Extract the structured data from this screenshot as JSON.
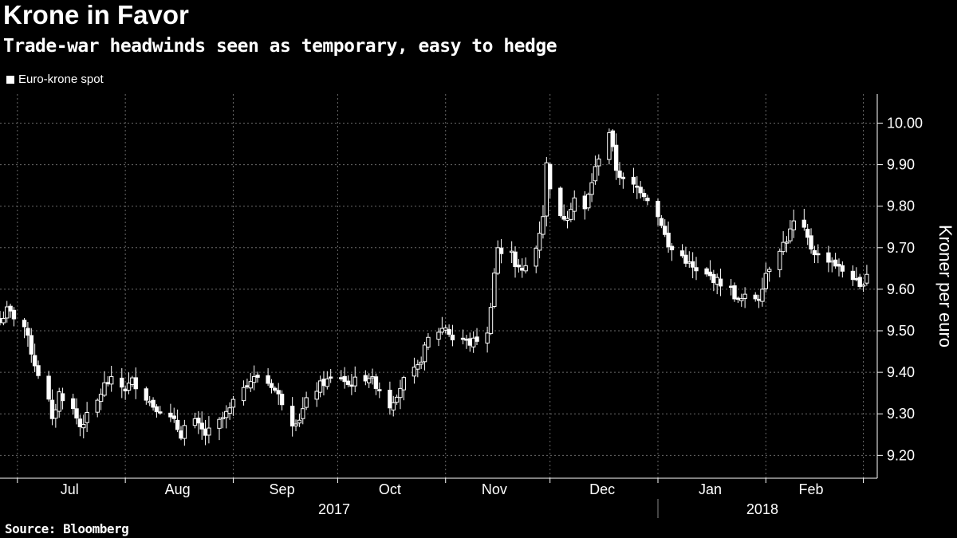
{
  "title": "Krone in Favor",
  "subtitle": "Trade-war headwinds seen as temporary, easy to hedge",
  "source": "Source: Bloomberg",
  "colors": {
    "background": "#000000",
    "candle": "#ffffff",
    "grid": "#6a6a6a"
  },
  "chart_data": {
    "type": "candlestick",
    "legend": [
      "Euro-krone spot"
    ],
    "ylabel": "Kroner per euro",
    "ylim": [
      9.145,
      10.07
    ],
    "yticks": [
      9.2,
      9.3,
      9.4,
      9.5,
      9.6,
      9.7,
      9.8,
      9.9,
      10.0
    ],
    "ytick_labels": [
      "9.20",
      "9.30",
      "9.40",
      "9.50",
      "9.60",
      "9.70",
      "9.80",
      "9.90",
      "10.00"
    ],
    "y_axis_position": "right",
    "grid": true,
    "x_start": "2017-06-26",
    "x_end": "2018-03-05",
    "month_boundaries": [
      "2017-07-01",
      "2017-08-01",
      "2017-09-01",
      "2017-10-01",
      "2017-11-01",
      "2017-12-01",
      "2018-01-01",
      "2018-02-01",
      "2018-03-01"
    ],
    "month_labels": [
      {
        "label": "Jul",
        "date": "2017-07-16"
      },
      {
        "label": "Aug",
        "date": "2017-08-16"
      },
      {
        "label": "Sep",
        "date": "2017-09-15"
      },
      {
        "label": "Oct",
        "date": "2017-10-16"
      },
      {
        "label": "Nov",
        "date": "2017-11-15"
      },
      {
        "label": "Dec",
        "date": "2017-12-16"
      },
      {
        "label": "Jan",
        "date": "2018-01-16"
      },
      {
        "label": "Feb",
        "date": "2018-02-14"
      }
    ],
    "year_labels": [
      {
        "label": "2017",
        "date": "2017-09-30"
      },
      {
        "label": "2018",
        "date": "2018-01-31"
      }
    ],
    "year_divider": "2018-01-01",
    "close_anchors": [
      [
        "2017-06-26",
        9.52
      ],
      [
        "2017-06-28",
        9.55
      ],
      [
        "2017-07-03",
        9.51
      ],
      [
        "2017-07-06",
        9.42
      ],
      [
        "2017-07-10",
        9.33
      ],
      [
        "2017-07-11",
        9.28
      ],
      [
        "2017-07-13",
        9.35
      ],
      [
        "2017-07-17",
        9.31
      ],
      [
        "2017-07-19",
        9.27
      ],
      [
        "2017-07-24",
        9.33
      ],
      [
        "2017-07-26",
        9.37
      ],
      [
        "2017-07-28",
        9.38
      ],
      [
        "2017-08-01",
        9.36
      ],
      [
        "2017-08-03",
        9.38
      ],
      [
        "2017-08-07",
        9.34
      ],
      [
        "2017-08-09",
        9.32
      ],
      [
        "2017-08-11",
        9.31
      ],
      [
        "2017-08-15",
        9.28
      ],
      [
        "2017-08-17",
        9.25
      ],
      [
        "2017-08-18",
        9.27
      ],
      [
        "2017-08-21",
        9.28
      ],
      [
        "2017-08-24",
        9.25
      ],
      [
        "2017-08-28",
        9.28
      ],
      [
        "2017-08-31",
        9.31
      ],
      [
        "2017-09-04",
        9.37
      ],
      [
        "2017-09-06",
        9.38
      ],
      [
        "2017-09-08",
        9.39
      ],
      [
        "2017-09-12",
        9.37
      ],
      [
        "2017-09-15",
        9.33
      ],
      [
        "2017-09-18",
        9.28
      ],
      [
        "2017-09-20",
        9.29
      ],
      [
        "2017-09-22",
        9.33
      ],
      [
        "2017-09-26",
        9.37
      ],
      [
        "2017-09-28",
        9.38
      ],
      [
        "2017-10-02",
        9.39
      ],
      [
        "2017-10-04",
        9.37
      ],
      [
        "2017-10-06",
        9.38
      ],
      [
        "2017-10-10",
        9.39
      ],
      [
        "2017-10-13",
        9.36
      ],
      [
        "2017-10-16",
        9.32
      ],
      [
        "2017-10-18",
        9.35
      ],
      [
        "2017-10-20",
        9.38
      ],
      [
        "2017-10-24",
        9.41
      ],
      [
        "2017-10-27",
        9.48
      ],
      [
        "2017-10-30",
        9.5
      ],
      [
        "2017-11-01",
        9.51
      ],
      [
        "2017-11-03",
        9.48
      ],
      [
        "2017-11-06",
        9.48
      ],
      [
        "2017-11-08",
        9.47
      ],
      [
        "2017-11-10",
        9.48
      ],
      [
        "2017-11-13",
        9.49
      ],
      [
        "2017-11-15",
        9.64
      ],
      [
        "2017-11-16",
        9.7
      ],
      [
        "2017-11-17",
        9.68
      ],
      [
        "2017-11-20",
        9.7
      ],
      [
        "2017-11-21",
        9.66
      ],
      [
        "2017-11-23",
        9.64
      ],
      [
        "2017-11-27",
        9.7
      ],
      [
        "2017-11-29",
        9.78
      ],
      [
        "2017-11-30",
        9.9
      ],
      [
        "2017-12-01",
        9.85
      ],
      [
        "2017-12-04",
        9.77
      ],
      [
        "2017-12-06",
        9.78
      ],
      [
        "2017-12-08",
        9.82
      ],
      [
        "2017-12-11",
        9.79
      ],
      [
        "2017-12-13",
        9.86
      ],
      [
        "2017-12-15",
        9.92
      ],
      [
        "2017-12-18",
        9.98
      ],
      [
        "2017-12-20",
        9.89
      ],
      [
        "2017-12-22",
        9.86
      ],
      [
        "2017-12-27",
        9.84
      ],
      [
        "2017-12-29",
        9.82
      ],
      [
        "2018-01-02",
        9.76
      ],
      [
        "2018-01-04",
        9.7
      ],
      [
        "2018-01-08",
        9.68
      ],
      [
        "2018-01-10",
        9.66
      ],
      [
        "2018-01-12",
        9.64
      ],
      [
        "2018-01-16",
        9.63
      ],
      [
        "2018-01-18",
        9.62
      ],
      [
        "2018-01-22",
        9.6
      ],
      [
        "2018-01-24",
        9.57
      ],
      [
        "2018-01-26",
        9.58
      ],
      [
        "2018-01-30",
        9.58
      ],
      [
        "2018-02-01",
        9.64
      ],
      [
        "2018-02-05",
        9.7
      ],
      [
        "2018-02-07",
        9.72
      ],
      [
        "2018-02-09",
        9.76
      ],
      [
        "2018-02-12",
        9.74
      ],
      [
        "2018-02-14",
        9.7
      ],
      [
        "2018-02-16",
        9.68
      ],
      [
        "2018-02-20",
        9.67
      ],
      [
        "2018-02-22",
        9.65
      ],
      [
        "2018-02-26",
        9.63
      ],
      [
        "2018-02-28",
        9.6
      ],
      [
        "2018-03-02",
        9.64
      ]
    ]
  }
}
